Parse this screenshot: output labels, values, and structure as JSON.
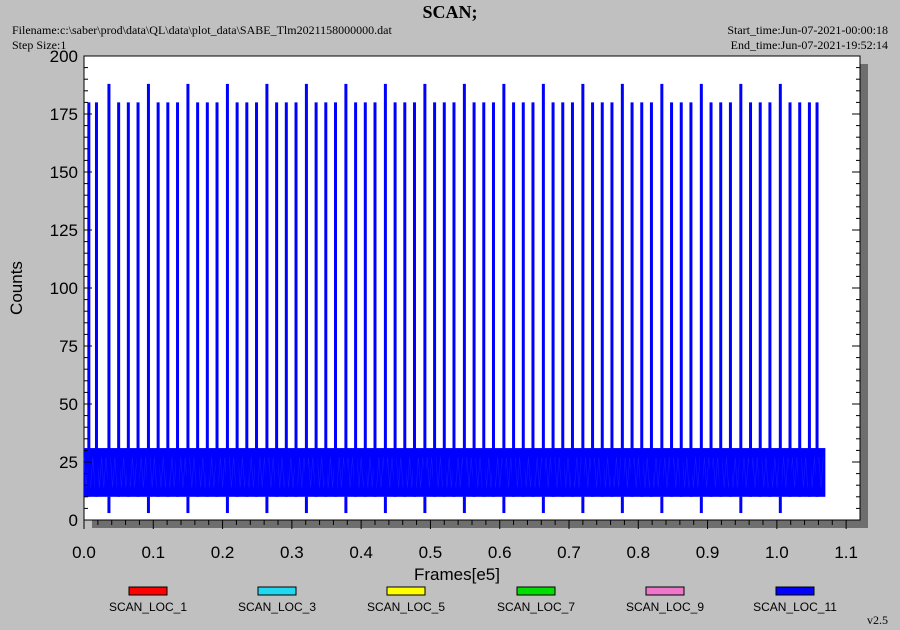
{
  "header": {
    "title": "SCAN;",
    "filename": "Filename:c:\\saber\\prod\\data\\QL\\data\\plot_data\\SABE_Tlm2021158000000.dat",
    "step_size": "Step Size:1",
    "start_time": "Start_time:Jun-07-2021-00:00:18",
    "end_time": "End_time:Jun-07-2021-19:52:14"
  },
  "version": "v2.5",
  "chart_data": {
    "type": "line",
    "title": "SCAN;",
    "xlabel": "Frames[e5]",
    "ylabel": "Counts",
    "xlim": [
      0,
      1.12
    ],
    "ylim": [
      0,
      200
    ],
    "xticks": [
      0,
      0.1,
      0.2,
      0.3,
      0.4,
      0.5,
      0.6,
      0.7,
      0.8,
      0.9,
      1.0,
      1.1
    ],
    "xtick_labels": [
      "0.0",
      "0.1",
      "0.2",
      "0.3",
      "0.4",
      "0.5",
      "0.6",
      "0.7",
      "0.8",
      "0.9",
      "1.0",
      "1.1"
    ],
    "yticks": [
      0,
      25,
      50,
      75,
      100,
      125,
      150,
      175,
      200
    ],
    "ytick_labels": [
      "0",
      "25",
      "50",
      "75",
      "100",
      "125",
      "150",
      "175",
      "200"
    ],
    "grid": false,
    "legend_position": "bottom",
    "legend": [
      {
        "name": "SCAN_LOC_1",
        "color": "#ff0000"
      },
      {
        "name": "SCAN_LOC_3",
        "color": "#22d8f0"
      },
      {
        "name": "SCAN_LOC_5",
        "color": "#ffff00"
      },
      {
        "name": "SCAN_LOC_7",
        "color": "#00dd00"
      },
      {
        "name": "SCAN_LOC_9",
        "color": "#ee77cc"
      },
      {
        "name": "SCAN_LOC_11",
        "color": "#0000ff"
      }
    ],
    "series": [
      {
        "name": "SCAN_LOC_11",
        "color": "#0000ff",
        "data_end_x": 1.07,
        "baseline_band": [
          10,
          31
        ],
        "tall_spike_peak": 180,
        "tall_spikes_x": [
          0.007,
          0.018,
          0.05,
          0.064,
          0.078,
          0.107,
          0.121,
          0.135,
          0.164,
          0.178,
          0.192,
          0.221,
          0.235,
          0.249,
          0.278,
          0.292,
          0.306,
          0.335,
          0.349,
          0.363,
          0.392,
          0.406,
          0.42,
          0.449,
          0.463,
          0.477,
          0.506,
          0.52,
          0.534,
          0.563,
          0.577,
          0.591,
          0.62,
          0.634,
          0.648,
          0.677,
          0.691,
          0.705,
          0.734,
          0.748,
          0.762,
          0.791,
          0.805,
          0.819,
          0.848,
          0.862,
          0.876,
          0.905,
          0.919,
          0.933,
          0.962,
          0.976,
          0.99,
          1.019,
          1.033,
          1.047,
          1.058
        ],
        "peak_spike_peak": 188,
        "peak_spikes_x": [
          0.036,
          0.093,
          0.15,
          0.207,
          0.264,
          0.321,
          0.378,
          0.435,
          0.492,
          0.549,
          0.606,
          0.663,
          0.72,
          0.777,
          0.834,
          0.891,
          0.948,
          1.005
        ],
        "low_dips_x": [
          0.036,
          0.093,
          0.15,
          0.207,
          0.264,
          0.321,
          0.378,
          0.435,
          0.492,
          0.549,
          0.606,
          0.663,
          0.72,
          0.777,
          0.834,
          0.891,
          0.948,
          1.005
        ],
        "low_dip_value": 3
      }
    ]
  }
}
